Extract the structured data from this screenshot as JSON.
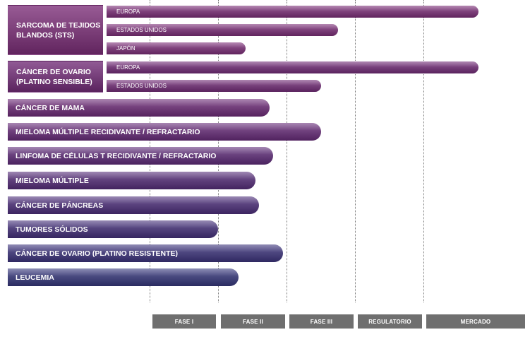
{
  "chart_data": {
    "type": "bar",
    "orientation": "horizontal",
    "title": "",
    "xlabel": "",
    "ylabel": "",
    "phases": [
      "FASE I",
      "FASE II",
      "FASE III",
      "REGULATORIO",
      "MERCADO"
    ],
    "xlim": [
      0,
      5
    ],
    "groups": [
      {
        "label": "SARCOMA DE TEJIDOS BLANDOS (STS)",
        "color": "#7a3d77",
        "bars": [
          {
            "name": "EUROPA",
            "value": 4.8
          },
          {
            "name": "ESTADOS UNIDOS",
            "value": 2.75
          },
          {
            "name": "JAPÓN",
            "value": 1.4
          }
        ]
      },
      {
        "label": "CÁNCER DE OVARIO (PLATINO SENSIBLE)",
        "color": "#733c77",
        "bars": [
          {
            "name": "EUROPA",
            "value": 4.8
          },
          {
            "name": "ESTADOS UNIDOS",
            "value": 2.5
          }
        ]
      }
    ],
    "series": [
      {
        "name": "CÁNCER DE MAMA",
        "value": 1.75,
        "color": "#6f3b77"
      },
      {
        "name": "MIELOMA MÚLTIPLE RECIDIVANTE / REFRACTARIO",
        "value": 2.5,
        "color": "#6a3b78"
      },
      {
        "name": "LINFOMA DE CÉLULAS T RECIDIVANTE / REFRACTARIO",
        "value": 1.8,
        "color": "#633b78"
      },
      {
        "name": "MIELOMA MÚLTIPLE",
        "value": 1.55,
        "color": "#5c3c78"
      },
      {
        "name": "CÁNCER DE PÁNCREAS",
        "value": 1.6,
        "color": "#553d79"
      },
      {
        "name": "TUMORES SÓLIDOS",
        "value": 1.0,
        "color": "#4f3f79"
      },
      {
        "name": "CÁNCER DE OVARIO (PLATINO RESISTENTE)",
        "value": 1.95,
        "color": "#48417a"
      },
      {
        "name": "LEUCEMIA",
        "value": 1.3,
        "color": "#43447a"
      }
    ]
  }
}
